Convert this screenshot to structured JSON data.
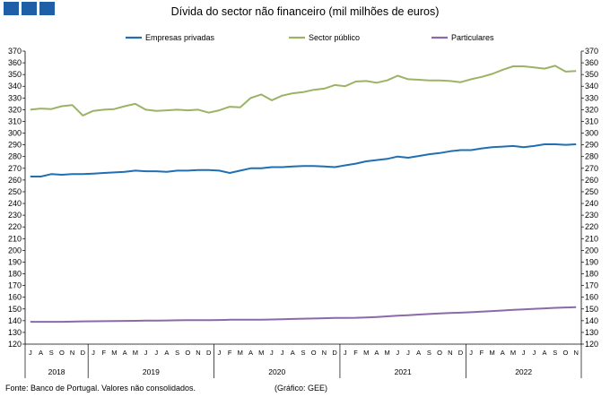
{
  "colors": {
    "logo": "#1f5fa8",
    "empresas": "#1f6fb2",
    "publico": "#9bb365",
    "particulares": "#8a6aa8"
  },
  "footer": {
    "source": "Fonte: Banco de Portugal. Valores não consolidados.",
    "credit": "(Gráfico: GEE)"
  },
  "chart_data": {
    "type": "line",
    "title": "Dívida do sector não financeiro (mil milhões de euros)",
    "ylim": [
      120,
      370
    ],
    "y_step": 10,
    "dual_axis": "same scale left and right",
    "grid": false,
    "legend_position": "top",
    "month_labels": [
      "J",
      "A",
      "S",
      "O",
      "N",
      "D",
      "J",
      "F",
      "M",
      "A",
      "M",
      "J",
      "J",
      "A",
      "S",
      "O",
      "N",
      "D",
      "J",
      "F",
      "M",
      "A",
      "M",
      "J",
      "J",
      "A",
      "S",
      "O",
      "N",
      "D",
      "J",
      "F",
      "M",
      "A",
      "M",
      "J",
      "J",
      "A",
      "S",
      "O",
      "N",
      "D",
      "J",
      "F",
      "M",
      "A",
      "M",
      "J",
      "J",
      "A",
      "S",
      "O",
      "N"
    ],
    "year_groups": [
      {
        "label": "2018",
        "start": 0,
        "count": 6
      },
      {
        "label": "2019",
        "start": 6,
        "count": 12
      },
      {
        "label": "2020",
        "start": 18,
        "count": 12
      },
      {
        "label": "2021",
        "start": 30,
        "count": 12
      },
      {
        "label": "2022",
        "start": 42,
        "count": 11
      }
    ],
    "series": [
      {
        "name": "Empresas privadas",
        "color": "#1f6fb2",
        "values": [
          263,
          263,
          265,
          264.5,
          265,
          265,
          265.5,
          266,
          266.5,
          267,
          268,
          267.5,
          267.5,
          267,
          268,
          268,
          268.5,
          268.5,
          268,
          266,
          268,
          270,
          270,
          271,
          271,
          271.5,
          272,
          272,
          271.5,
          271,
          272.5,
          274,
          276,
          277,
          278,
          280,
          279,
          280.5,
          282,
          283,
          284.5,
          285.5,
          285.5,
          287,
          288,
          288.5,
          289,
          288,
          289,
          290.5,
          290.5,
          290,
          290.5
        ]
      },
      {
        "name": "Sector público",
        "color": "#9bb365",
        "values": [
          320,
          321,
          320.5,
          323,
          324,
          315,
          319,
          320,
          320.5,
          323,
          325,
          320,
          319,
          319.5,
          320,
          319.5,
          320,
          317.5,
          319.5,
          322.5,
          322,
          330,
          333,
          328,
          332,
          334,
          335,
          337,
          338,
          341,
          340,
          344,
          344.5,
          343,
          345,
          349,
          346,
          345.5,
          345,
          345,
          344.5,
          343.5,
          346,
          348,
          350.5,
          354,
          357,
          357,
          356,
          355,
          357.5,
          352.5,
          353
        ]
      },
      {
        "name": "Particulares",
        "color": "#8a6aa8",
        "values": [
          139,
          139,
          139,
          139,
          139.2,
          139.4,
          139.5,
          139.6,
          139.7,
          139.8,
          139.9,
          140,
          140.1,
          140.2,
          140.3,
          140.4,
          140.5,
          140.5,
          140.6,
          140.8,
          140.8,
          140.8,
          140.9,
          141,
          141.2,
          141.5,
          141.7,
          141.9,
          142.1,
          142.3,
          142.4,
          142.5,
          142.8,
          143.2,
          143.7,
          144.2,
          144.7,
          145.2,
          145.7,
          146.2,
          146.5,
          146.8,
          147.2,
          147.7,
          148.2,
          148.7,
          149.2,
          149.6,
          150.1,
          150.5,
          151,
          151.3,
          151.5
        ]
      }
    ]
  }
}
